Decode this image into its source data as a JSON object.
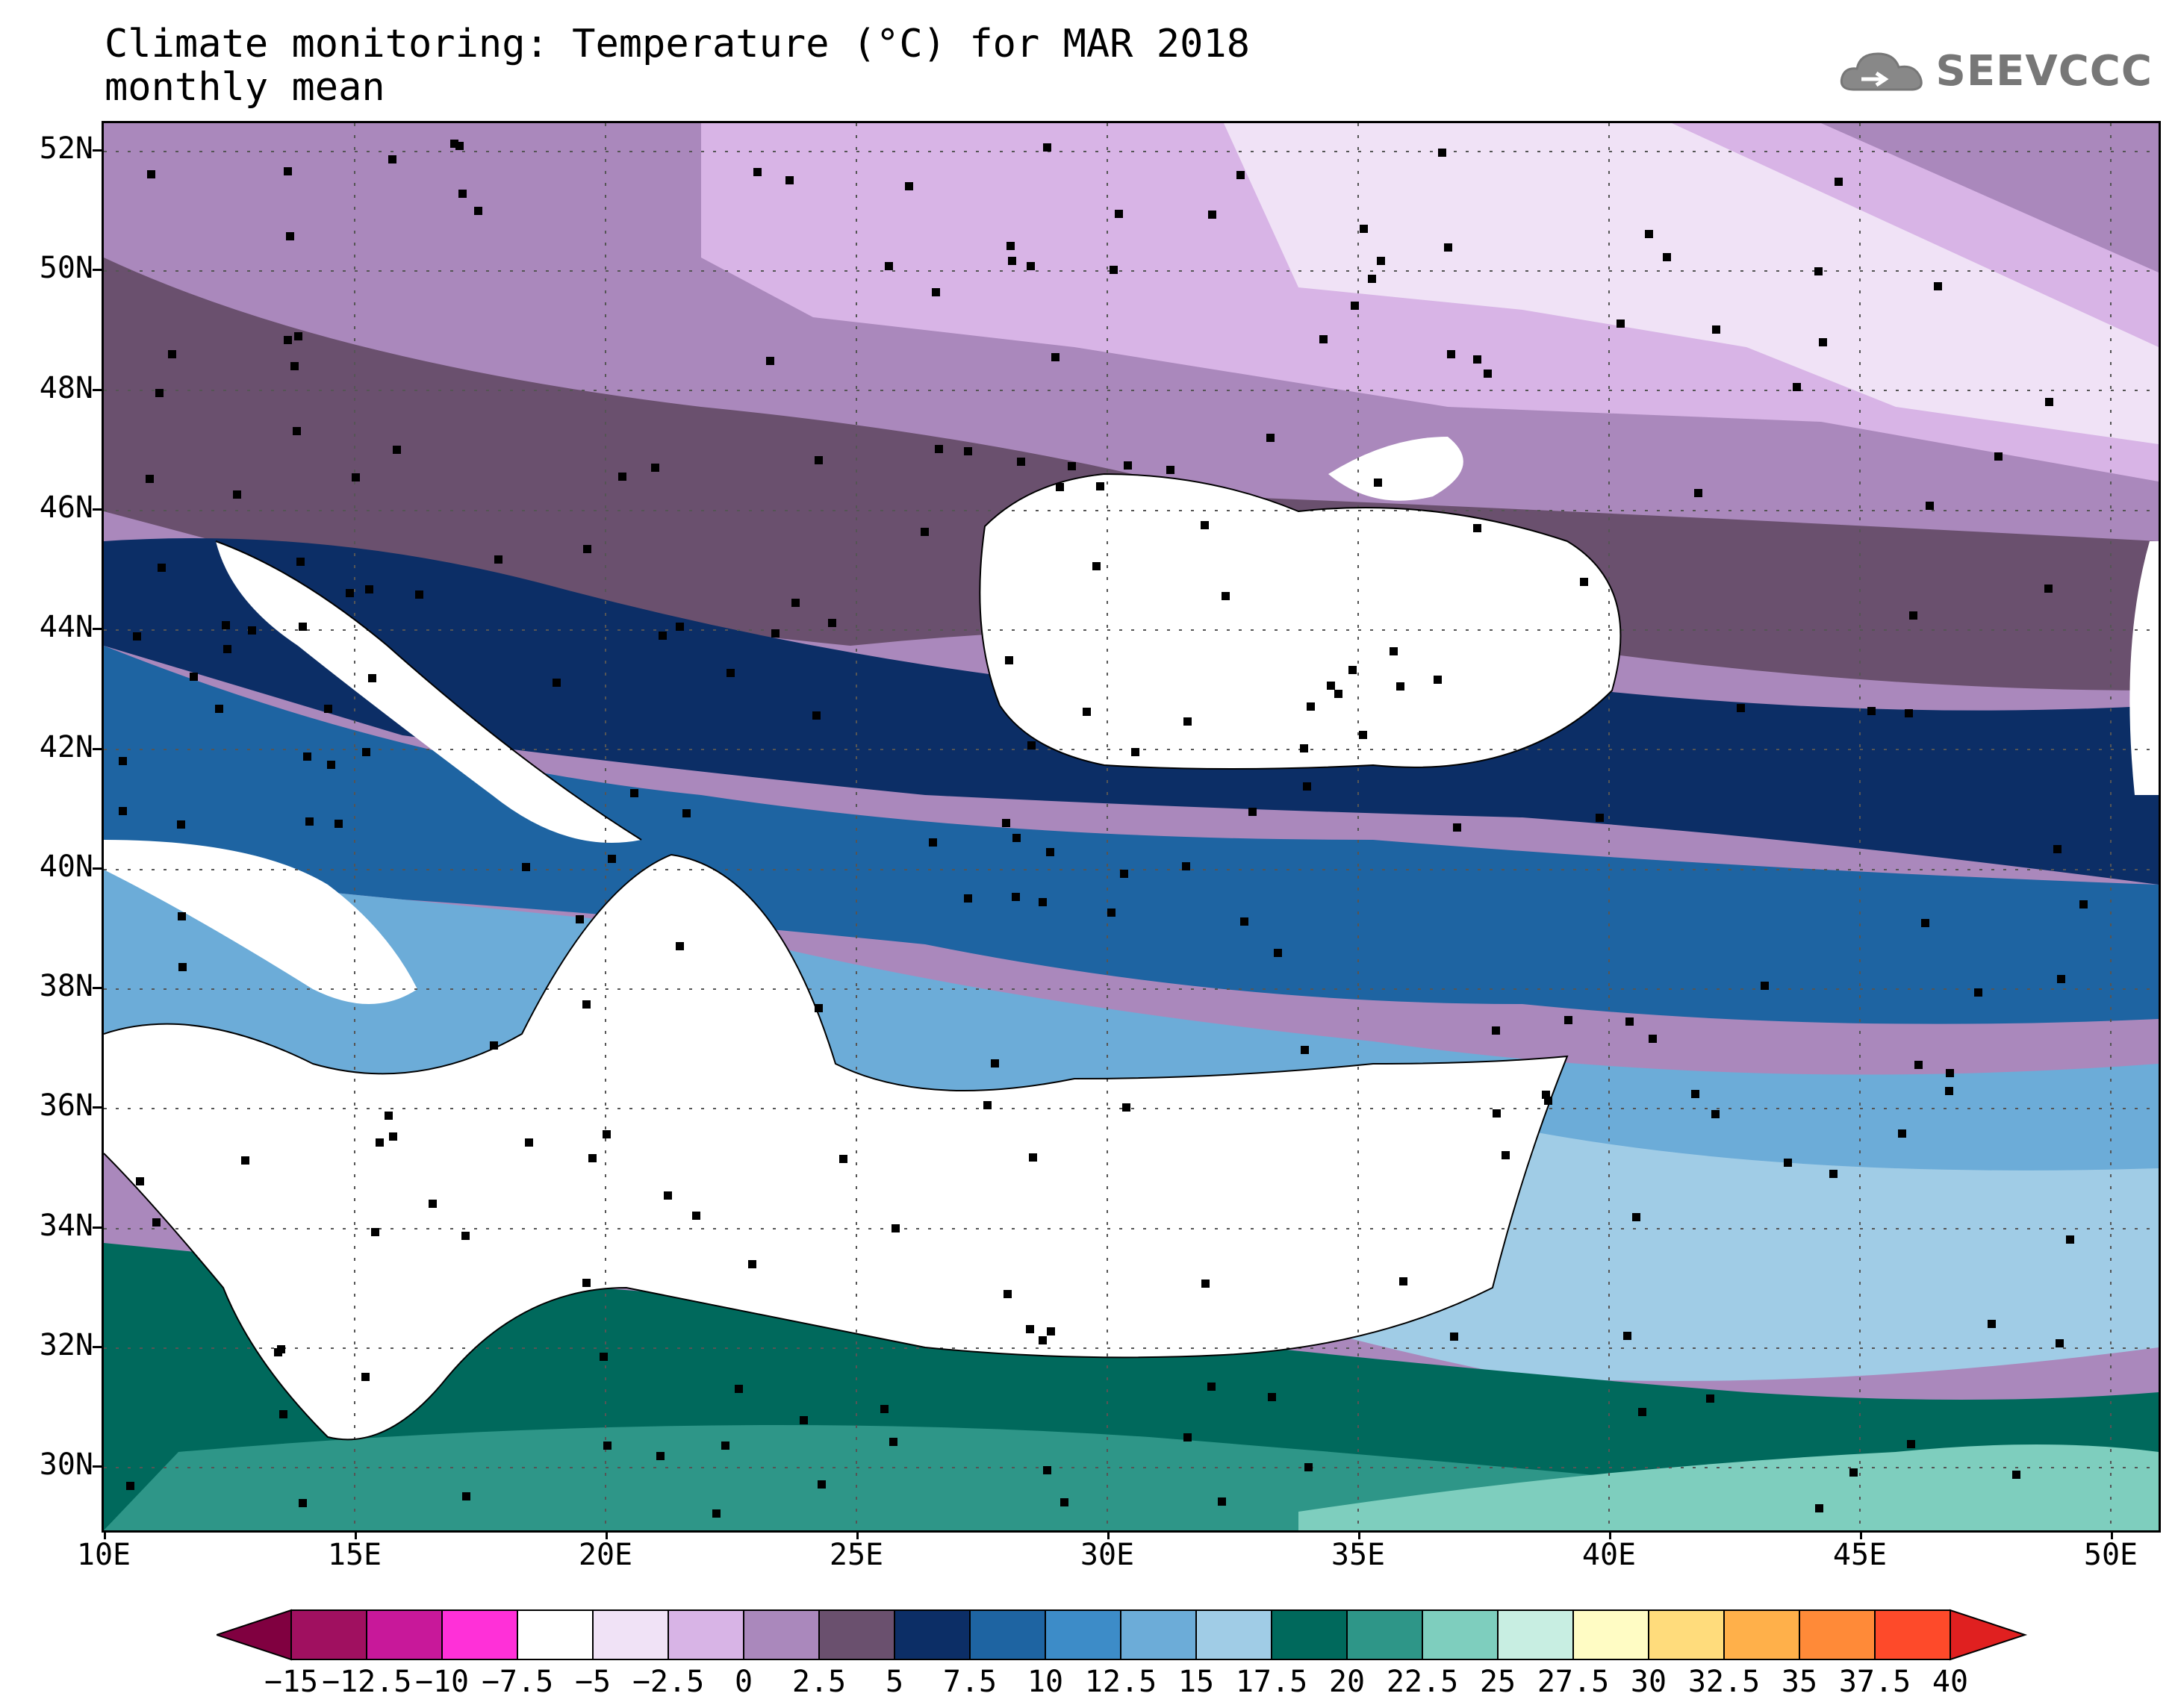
{
  "header": {
    "title_line1": "Climate monitoring: Temperature (°C) for MAR 2018",
    "title_line2": "monthly mean",
    "logo_text": "SEEVCCC"
  },
  "map": {
    "lat_labels": [
      "52N",
      "50N",
      "48N",
      "46N",
      "44N",
      "42N",
      "40N",
      "38N",
      "36N",
      "34N",
      "32N",
      "30N"
    ],
    "lon_labels": [
      "10E",
      "15E",
      "20E",
      "25E",
      "30E",
      "35E",
      "40E",
      "45E",
      "50E"
    ],
    "lon_range": [
      10,
      51
    ],
    "lat_range": [
      29,
      52.5
    ],
    "gridlines": "dotted"
  },
  "legend": {
    "labels": [
      "−15",
      "−12.5",
      "−10",
      "−7.5",
      "−5",
      "−2.5",
      "0",
      "2.5",
      "5",
      "7.5",
      "10",
      "12.5",
      "15",
      "17.5",
      "20",
      "22.5",
      "25",
      "27.5",
      "30",
      "32.5",
      "35",
      "37.5",
      "40"
    ],
    "colors": [
      "#a01060",
      "#c8189a",
      "#ff30d8",
      "#ffffff",
      "#f0e2f6",
      "#d8b4e6",
      "#aa88bc",
      "#6a506e",
      "#0c2e66",
      "#1e64a2",
      "#3d8cc8",
      "#6cacd8",
      "#a0cce6",
      "#00695c",
      "#2e9688",
      "#7ecebe",
      "#c8eee2",
      "#fffcc4",
      "#ffdc7c",
      "#ffb04a",
      "#ff8a38",
      "#fe4a2a"
    ],
    "left_arrow_color": "#800040",
    "right_arrow_color": "#e02020"
  }
}
